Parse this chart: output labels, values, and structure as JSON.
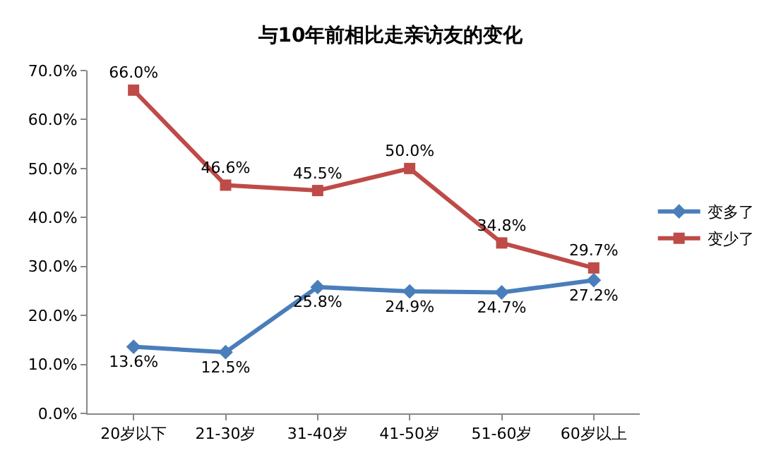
{
  "chart_data": {
    "type": "line",
    "title": "与10年前相比走亲访友的变化",
    "categories": [
      "20岁以下",
      "21-30岁",
      "31-40岁",
      "41-50岁",
      "51-60岁",
      "60岁以上"
    ],
    "series": [
      {
        "name": "变多了",
        "color": "#4a7ebb",
        "marker": "diamond",
        "values": [
          13.6,
          12.5,
          25.8,
          24.9,
          24.7,
          27.2
        ],
        "value_labels": [
          "13.6%",
          "12.5%",
          "25.8%",
          "24.9%",
          "24.7%",
          "27.2%"
        ]
      },
      {
        "name": "变少了",
        "color": "#be4b48",
        "marker": "square",
        "values": [
          66.0,
          46.6,
          45.5,
          50.0,
          34.8,
          29.7
        ],
        "value_labels": [
          "66.0%",
          "46.6%",
          "45.5%",
          "50.0%",
          "34.8%",
          "29.7%"
        ]
      }
    ],
    "ylim": [
      0,
      70
    ],
    "yticks": [
      {
        "value": 0,
        "label": "0.0%"
      },
      {
        "value": 10,
        "label": "10.0%"
      },
      {
        "value": 20,
        "label": "20.0%"
      },
      {
        "value": 30,
        "label": "30.0%"
      },
      {
        "value": 40,
        "label": "40.0%"
      },
      {
        "value": 50,
        "label": "50.0%"
      },
      {
        "value": 60,
        "label": "60.0%"
      },
      {
        "value": 70,
        "label": "70.0%"
      }
    ],
    "grid": false,
    "legend": "right",
    "line_style": "solid"
  }
}
